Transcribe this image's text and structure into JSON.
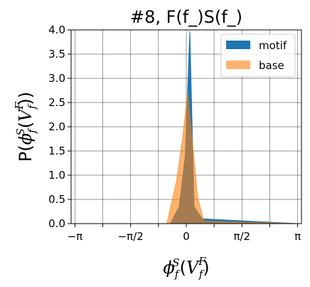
{
  "chart_data": {
    "type": "area",
    "title": "#8, F(f_)S(f_)",
    "xlabel": "ϕ_f^S(V̂_f^F)",
    "ylabel": "P(ϕ_f^S(V̂_f^F))",
    "xlabel_parts": {
      "base": "ϕ",
      "sub": "f",
      "sup": "S",
      "open": "(",
      "arg": "V",
      "arg_sup": "F",
      "arg_sub": "f",
      "close": ")"
    },
    "ylabel_parts": {
      "prefix": "P(",
      "base": "ϕ",
      "sub": "f",
      "sup": "S",
      "open": "(",
      "arg": "V",
      "arg_sup": "F",
      "arg_sub": "f",
      "close": "))"
    },
    "xlim": [
      -3.25,
      3.25
    ],
    "ylim": [
      0,
      4.0
    ],
    "grid": true,
    "legend_position": "top-right",
    "x_ticks": [
      {
        "value": -3.14159,
        "label": "−π"
      },
      {
        "value": -2.35619,
        "label": ""
      },
      {
        "value": -1.5708,
        "label": "−π/2"
      },
      {
        "value": -0.7854,
        "label": ""
      },
      {
        "value": 0,
        "label": "0"
      },
      {
        "value": 0.7854,
        "label": ""
      },
      {
        "value": 1.5708,
        "label": "π/2"
      },
      {
        "value": 2.35619,
        "label": ""
      },
      {
        "value": 3.14159,
        "label": "π"
      }
    ],
    "y_ticks": [
      0.0,
      0.5,
      1.0,
      1.5,
      2.0,
      2.5,
      3.0,
      3.5,
      4.0
    ],
    "y_tick_labels": [
      "0.0",
      "0.5",
      "1.0",
      "1.5",
      "2.0",
      "2.5",
      "3.0",
      "3.5",
      "4.0"
    ],
    "series": [
      {
        "name": "motif",
        "color": "#1f77b4",
        "opacity": 1.0,
        "x": [
          -3.14,
          -0.45,
          -0.2,
          -0.03,
          0.1,
          0.22,
          0.45,
          3.14
        ],
        "y": [
          0,
          0,
          0.35,
          1.4,
          3.97,
          0.35,
          0.1,
          0
        ]
      },
      {
        "name": "base",
        "color": "#ff7f0e",
        "opacity": 0.6,
        "x": [
          -3.14,
          -0.55,
          -0.27,
          -0.1,
          0.04,
          0.18,
          0.32,
          0.5,
          3.14
        ],
        "y": [
          0,
          0,
          0.9,
          1.8,
          2.7,
          1.65,
          0.55,
          0.05,
          0
        ]
      }
    ]
  }
}
